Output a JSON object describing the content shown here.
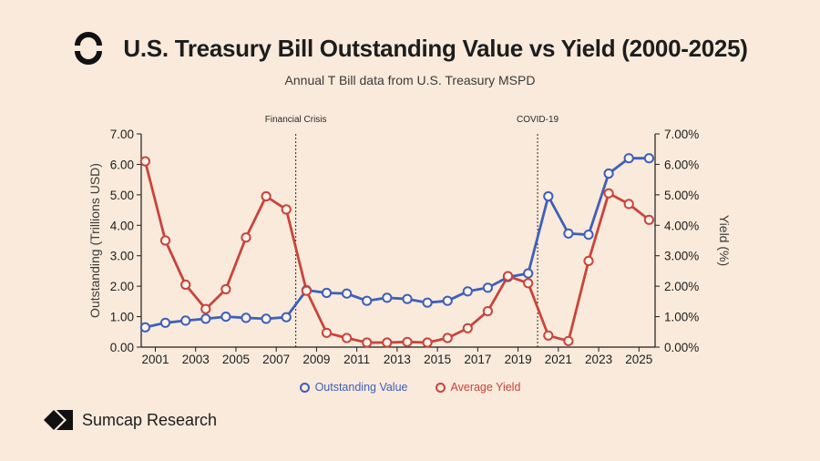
{
  "header": {
    "title": "U.S. Treasury Bill Outstanding Value vs Yield (2000-2025)",
    "subtitle": "Annual T Bill data from U.S. Treasury MSPD"
  },
  "brand": {
    "name": "Sumcap Research",
    "logo_icon": "sumcap-logo-icon",
    "title_icon": "ring-logo-icon"
  },
  "colors": {
    "background": "#f9eadb",
    "outstanding": "#3f5fb8",
    "yield": "#c9443b",
    "text": "#1d1d1d"
  },
  "chart_data": {
    "type": "line",
    "title": "U.S. Treasury Bill Outstanding Value vs Yield (2000-2025)",
    "xlabel": "",
    "ylabel_left": "Outstanding (Trillions USD)",
    "ylabel_right": "Yield (%)",
    "xlim": [
      2000.3,
      2025.8
    ],
    "ylim_left": [
      0,
      7
    ],
    "ylim_right": [
      0,
      7
    ],
    "x_ticks": [
      "2001",
      "2003",
      "2005",
      "2007",
      "2009",
      "2011",
      "2013",
      "2015",
      "2017",
      "2019",
      "2021",
      "2023",
      "2025"
    ],
    "y_ticks_left": [
      "0.00",
      "1.00",
      "2.00",
      "3.00",
      "4.00",
      "5.00",
      "6.00",
      "7.00"
    ],
    "y_ticks_right": [
      "0.00%",
      "1.00%",
      "2.00%",
      "3.00%",
      "4.00%",
      "5.00%",
      "6.00%",
      "7.00%"
    ],
    "annotations": [
      {
        "label": "Financial Crisis",
        "x": 2007.97
      },
      {
        "label": "COVID-19",
        "x": 2019.97
      }
    ],
    "x": [
      2000.5,
      2001.5,
      2002.5,
      2003.5,
      2004.5,
      2005.5,
      2006.5,
      2007.5,
      2008.5,
      2009.5,
      2010.5,
      2011.5,
      2012.5,
      2013.5,
      2014.5,
      2015.5,
      2016.5,
      2017.5,
      2018.5,
      2019.5,
      2020.5,
      2021.5,
      2022.5,
      2023.5,
      2024.5,
      2025.5
    ],
    "series": [
      {
        "name": "Outstanding Value",
        "axis": "left",
        "color": "#3f5fb8",
        "values": [
          0.65,
          0.8,
          0.87,
          0.93,
          1.0,
          0.96,
          0.93,
          0.98,
          1.87,
          1.78,
          1.76,
          1.52,
          1.62,
          1.58,
          1.46,
          1.52,
          1.83,
          1.95,
          2.3,
          2.42,
          4.95,
          3.73,
          3.69,
          5.7,
          6.2,
          6.2
        ]
      },
      {
        "name": "Average Yield",
        "axis": "right",
        "color": "#c9443b",
        "values": [
          6.1,
          3.5,
          2.05,
          1.25,
          1.9,
          3.6,
          4.95,
          4.52,
          1.85,
          0.47,
          0.3,
          0.15,
          0.15,
          0.17,
          0.15,
          0.3,
          0.62,
          1.18,
          2.33,
          2.1,
          0.38,
          0.2,
          2.83,
          5.05,
          4.7,
          4.18
        ]
      }
    ],
    "legend": "bottom-center",
    "grid": false
  }
}
